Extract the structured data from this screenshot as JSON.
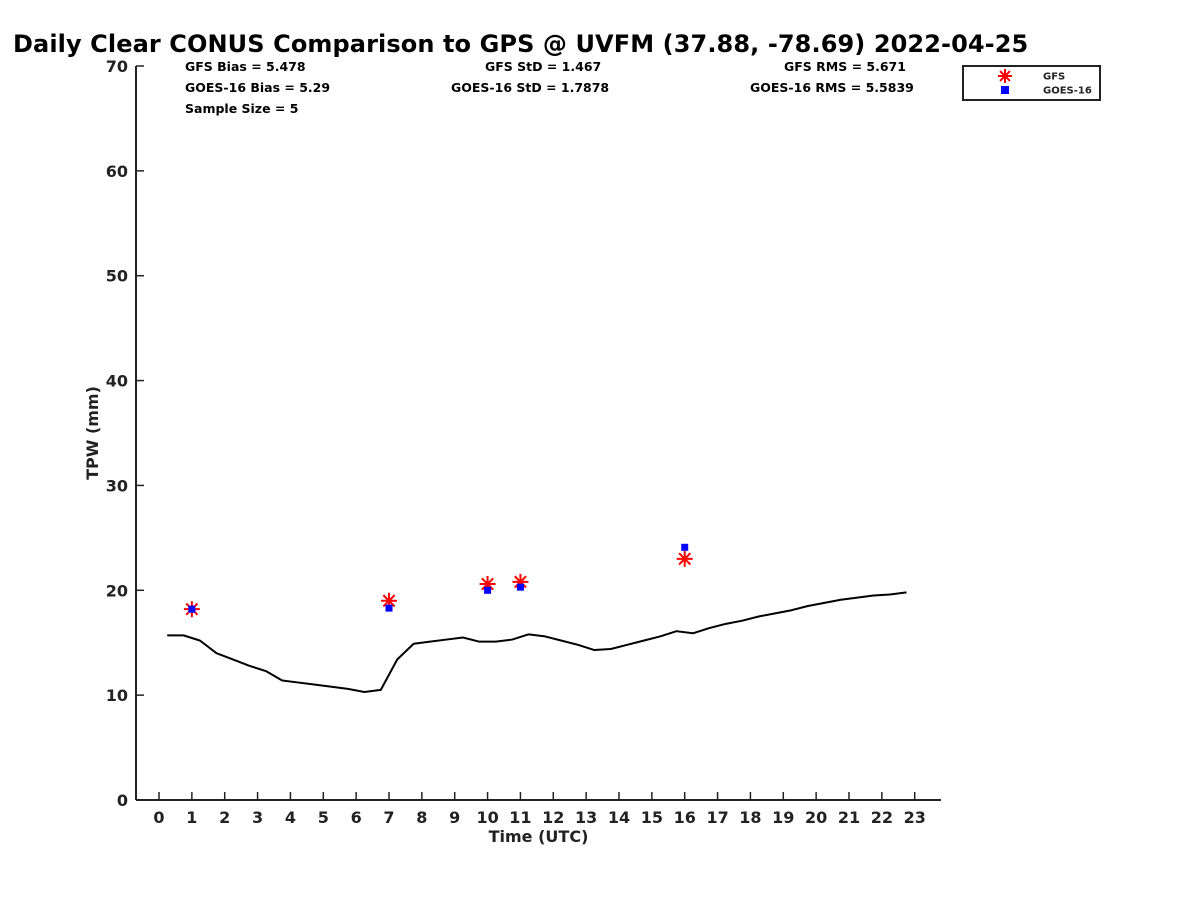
{
  "chart_data": {
    "type": "scatter",
    "title": "Daily Clear CONUS Comparison to GPS @ UVFM (37.88, -78.69) 2022-04-25",
    "xlabel": "Time (UTC)",
    "ylabel": "TPW (mm)",
    "xlim": [
      -0.7,
      23.8
    ],
    "ylim": [
      0,
      70
    ],
    "x_ticks": [
      0,
      1,
      2,
      3,
      4,
      5,
      6,
      7,
      8,
      9,
      10,
      11,
      12,
      13,
      14,
      15,
      16,
      17,
      18,
      19,
      20,
      21,
      22,
      23
    ],
    "y_ticks": [
      0,
      10,
      20,
      30,
      40,
      50,
      60,
      70
    ],
    "grid": false,
    "legend_position": "top-right, outside plot",
    "stats": {
      "gfs_bias": "GFS Bias = 5.478",
      "goes_bias": "GOES-16 Bias = 5.29",
      "sample_size": "Sample Size = 5",
      "gfs_std": "GFS StD = 1.467",
      "goes_std": "GOES-16 StD = 1.7878",
      "gfs_rms": "GFS RMS = 5.671",
      "goes_rms": "GOES-16 RMS = 5.5839"
    },
    "series": [
      {
        "name": "GFS",
        "marker": "asterisk",
        "color": "#ff0000",
        "x": [
          1,
          7,
          10,
          11,
          16
        ],
        "y": [
          18.2,
          19.0,
          20.6,
          20.8,
          23.0
        ]
      },
      {
        "name": "GOES-16",
        "marker": "square",
        "color": "#0000ff",
        "x": [
          1,
          7,
          10,
          11,
          16
        ],
        "y": [
          18.2,
          18.3,
          20.0,
          20.3,
          24.1
        ]
      },
      {
        "marker": "line",
        "color": "#000000",
        "x": [
          0.25,
          0.75,
          1.25,
          1.75,
          2.25,
          2.75,
          3.25,
          3.75,
          4.25,
          4.75,
          5.25,
          5.75,
          6.25,
          6.75,
          7.25,
          7.75,
          8.25,
          8.75,
          9.25,
          9.75,
          10.25,
          10.75,
          11.25,
          11.75,
          12.25,
          12.75,
          13.25,
          13.75,
          14.25,
          14.75,
          15.25,
          15.75,
          16.25,
          16.75,
          17.25,
          17.75,
          18.25,
          18.75,
          19.25,
          19.75,
          20.25,
          20.75,
          21.25,
          21.75,
          22.25,
          22.75
        ],
        "y": [
          15.7,
          15.7,
          15.2,
          14.0,
          13.4,
          12.8,
          12.3,
          11.4,
          11.2,
          11.0,
          10.8,
          10.6,
          10.3,
          10.5,
          13.4,
          14.9,
          15.1,
          15.3,
          15.5,
          15.1,
          15.1,
          15.3,
          15.8,
          15.6,
          15.2,
          14.8,
          14.3,
          14.4,
          14.8,
          15.2,
          15.6,
          16.1,
          15.9,
          16.4,
          16.8,
          17.1,
          17.5,
          17.8,
          18.1,
          18.5,
          18.8,
          19.1,
          19.3,
          19.5,
          19.6,
          19.8
        ]
      }
    ]
  }
}
